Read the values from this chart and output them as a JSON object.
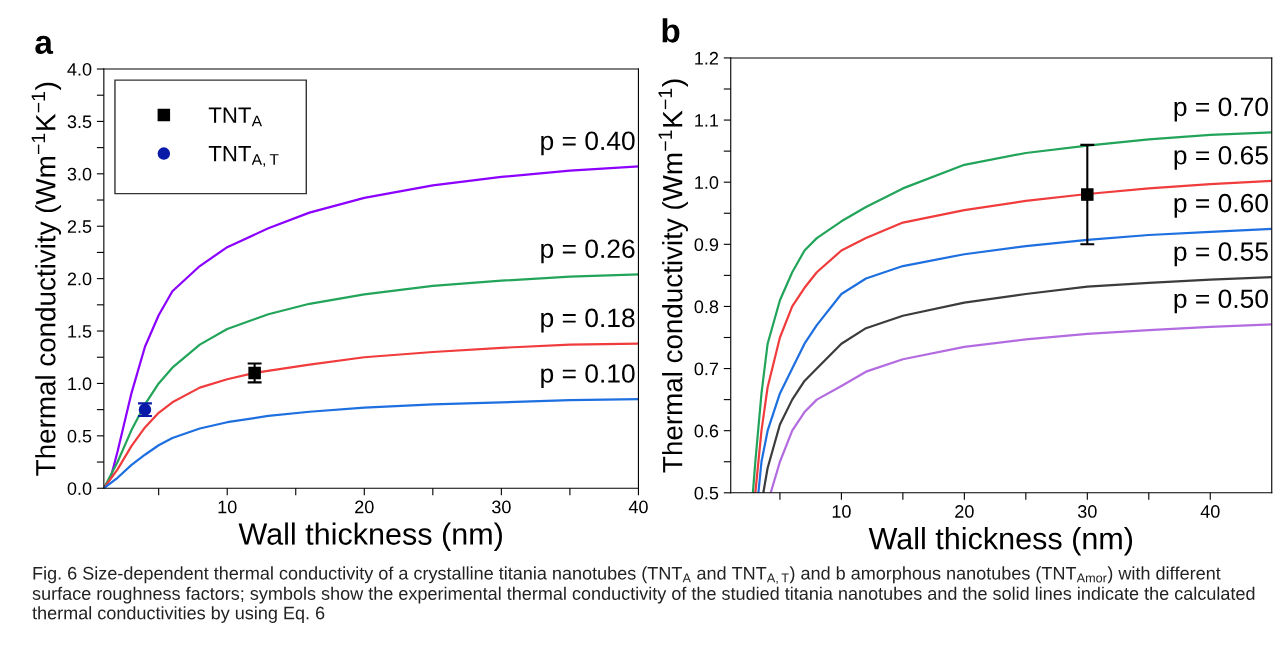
{
  "chart_data": [
    {
      "type": "line",
      "title": "a",
      "xlabel": "Wall thickness (nm)",
      "ylabel": "Thermal conductivity (Wm$^{−1}$K$^{−1}$)",
      "annotations": [
        "Fig. 6 Size-dependent thermal conductivity of a crystalline titania nanotubes (TNT$_{A}$ and TNT$_{A,T}$) and b amorphous nanotubes (TNT$_{Amor}$) with different surface roughness factors; symbols show the experimental thermal conductivity of the studied titania nanotubes and the solid lines indicate the calculated thermal conductivities by using Eq. 6"
      ],
      "xlim": [
        1,
        40
      ],
      "ylim": [
        0,
        4.0
      ],
      "xticks": [
        {
          "value": 5,
          "label": null
        },
        10,
        {
          "value": 15,
          "label": null
        },
        20,
        {
          "value": 25,
          "label": null
        },
        30,
        {
          "value": 35,
          "label": null
        },
        40
      ],
      "yticks": [
        "0.0",
        {
          "value": 0.25,
          "label": null
        },
        0.5,
        {
          "value": 0.75,
          "label": null
        },
        "1.0",
        {
          "value": 1.25,
          "label": null
        },
        1.5,
        {
          "value": 1.75,
          "label": null
        },
        "2.0",
        {
          "value": 2.25,
          "label": null
        },
        2.5,
        {
          "value": 2.75,
          "label": null
        },
        "3.0",
        {
          "value": 3.25,
          "label": null
        },
        3.5,
        {
          "value": 3.75,
          "label": null
        },
        "4.0"
      ],
      "grid": false,
      "legend": "top left",
      "series": [
        {
          "name": "p = 0.40",
          "color": "#8b00ff",
          "x": [
            1,
            1.5,
            2,
            3,
            4,
            5,
            6,
            8,
            10,
            13,
            16,
            20,
            25,
            30,
            35,
            40
          ],
          "values": [
            0,
            0.1,
            0.35,
            0.9,
            1.35,
            1.65,
            1.88,
            2.12,
            2.3,
            2.48,
            2.63,
            2.77,
            2.89,
            2.97,
            3.03,
            3.07
          ]
        },
        {
          "name": "p = 0.26",
          "color": "#22a45a",
          "x": [
            1,
            2,
            3,
            4,
            5,
            6,
            8,
            10,
            13,
            16,
            20,
            25,
            30,
            35,
            40
          ],
          "values": [
            0,
            0.25,
            0.55,
            0.8,
            1.0,
            1.15,
            1.37,
            1.52,
            1.66,
            1.76,
            1.85,
            1.93,
            1.98,
            2.02,
            2.04
          ]
        },
        {
          "name": "p = 0.18",
          "color": "#f03c3c",
          "x": [
            1,
            2,
            3,
            4,
            5,
            6,
            8,
            10,
            12,
            16,
            20,
            25,
            30,
            35,
            40
          ],
          "values": [
            0,
            0.18,
            0.4,
            0.58,
            0.72,
            0.82,
            0.96,
            1.04,
            1.1,
            1.18,
            1.25,
            1.3,
            1.34,
            1.37,
            1.38
          ]
        },
        {
          "name": "p = 0.10",
          "color": "#1e6fe0",
          "x": [
            1,
            2,
            3,
            4,
            5,
            6,
            8,
            10,
            13,
            16,
            20,
            25,
            30,
            35,
            40
          ],
          "values": [
            0,
            0.1,
            0.22,
            0.32,
            0.41,
            0.48,
            0.57,
            0.63,
            0.69,
            0.73,
            0.77,
            0.8,
            0.82,
            0.84,
            0.85
          ]
        },
        {
          "name": "TNT$_{A}$",
          "type": "scatter",
          "marker": "square",
          "color": "#000000",
          "x": [
            12
          ],
          "values": [
            1.1
          ],
          "errors": [
            0.09
          ]
        },
        {
          "name": "TNT$_{A,T}$",
          "type": "scatter",
          "marker": "circle",
          "color": "#0a1aa8",
          "x": [
            4
          ],
          "values": [
            0.75
          ],
          "errors": [
            0.06
          ]
        }
      ]
    },
    {
      "type": "line",
      "title": "b",
      "xlabel": "Wall thickness (nm)",
      "ylabel": "Thermal conductivity (Wm$^{−1}$K$^{−1}$)",
      "xlim": [
        1,
        45
      ],
      "ylim": [
        0.5,
        1.2
      ],
      "xticks": [
        {
          "value": 5,
          "label": null
        },
        10,
        {
          "value": 15,
          "label": null
        },
        20,
        {
          "value": 25,
          "label": null
        },
        30,
        {
          "value": 35,
          "label": null
        },
        40
      ],
      "yticks": [
        0.5,
        {
          "value": 0.55,
          "label": null
        },
        0.6,
        {
          "value": 0.65,
          "label": null
        },
        0.7,
        {
          "value": 0.75,
          "label": null
        },
        0.8,
        {
          "value": 0.85,
          "label": null
        },
        0.9,
        {
          "value": 0.95,
          "label": null
        },
        "1.0",
        {
          "value": 1.05,
          "label": null
        },
        1.1,
        {
          "value": 1.15,
          "label": null
        },
        1.2
      ],
      "grid": false,
      "series": [
        {
          "name": "p = 0.70",
          "color": "#22a45a",
          "x": [
            2.8,
            3,
            3.5,
            4,
            5,
            6,
            7,
            8,
            10,
            12,
            15,
            20,
            25,
            30,
            35,
            40,
            45
          ],
          "values": [
            0.5,
            0.55,
            0.66,
            0.74,
            0.81,
            0.855,
            0.89,
            0.91,
            0.937,
            0.96,
            0.99,
            1.028,
            1.047,
            1.059,
            1.069,
            1.076,
            1.08
          ]
        },
        {
          "name": "p = 0.65",
          "color": "#f03c3c",
          "x": [
            3,
            3.5,
            4,
            5,
            6,
            7,
            8,
            10,
            12,
            15,
            20,
            25,
            30,
            35,
            40,
            45
          ],
          "values": [
            0.5,
            0.6,
            0.67,
            0.75,
            0.8,
            0.83,
            0.855,
            0.89,
            0.91,
            0.935,
            0.955,
            0.97,
            0.981,
            0.99,
            0.997,
            1.002
          ]
        },
        {
          "name": "p = 0.60",
          "color": "#1e6fe0",
          "x": [
            3.25,
            3.5,
            4,
            5,
            6,
            7,
            8,
            10,
            12,
            15,
            20,
            25,
            30,
            35,
            40,
            45
          ],
          "values": [
            0.5,
            0.55,
            0.6,
            0.66,
            0.7,
            0.74,
            0.77,
            0.82,
            0.845,
            0.865,
            0.884,
            0.897,
            0.907,
            0.915,
            0.92,
            0.925
          ]
        },
        {
          "name": "p = 0.55",
          "color": "#3c3c3c",
          "x": [
            3.65,
            4,
            5,
            6,
            7,
            8,
            10,
            12,
            15,
            20,
            25,
            30,
            35,
            40,
            45
          ],
          "values": [
            0.5,
            0.54,
            0.61,
            0.65,
            0.68,
            0.7,
            0.74,
            0.765,
            0.785,
            0.806,
            0.82,
            0.832,
            0.838,
            0.843,
            0.847
          ]
        },
        {
          "name": "p = 0.50",
          "color": "#b36be0",
          "x": [
            4.25,
            5,
            6,
            7,
            8,
            10,
            12,
            15,
            20,
            25,
            30,
            35,
            40,
            45
          ],
          "values": [
            0.5,
            0.55,
            0.6,
            0.63,
            0.65,
            0.672,
            0.695,
            0.715,
            0.735,
            0.747,
            0.756,
            0.762,
            0.767,
            0.771
          ]
        },
        {
          "type": "scatter",
          "marker": "square",
          "color": "#000000",
          "x": [
            30
          ],
          "values": [
            0.98
          ],
          "errors": [
            [
              0.9,
              1.06
            ]
          ]
        }
      ]
    }
  ]
}
